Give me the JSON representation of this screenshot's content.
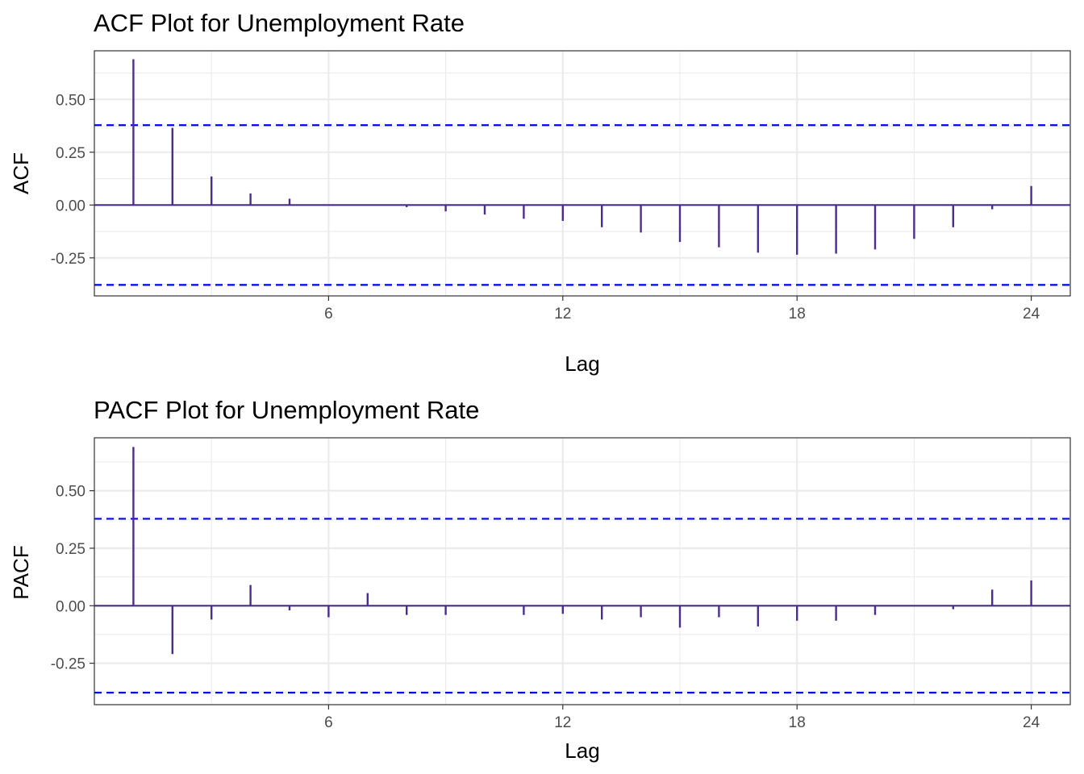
{
  "chart_data": [
    {
      "type": "bar",
      "title": "ACF Plot for Unemployment Rate",
      "xlabel": "Lag",
      "ylabel": "ACF",
      "x_ticks": [
        6,
        12,
        18,
        24
      ],
      "y_ticks": [
        0.5,
        0.25,
        0.0,
        -0.25
      ],
      "y_tick_labels": [
        "0.50",
        "0.25",
        "0.00",
        "-0.25"
      ],
      "xlim": [
        0,
        25
      ],
      "ylim": [
        -0.43,
        0.73
      ],
      "confidence_bounds": [
        0.378,
        -0.378
      ],
      "lags": [
        1,
        2,
        3,
        4,
        5,
        6,
        7,
        8,
        9,
        10,
        11,
        12,
        13,
        14,
        15,
        16,
        17,
        18,
        19,
        20,
        21,
        22,
        23,
        24
      ],
      "values": [
        0.69,
        0.365,
        0.135,
        0.055,
        0.03,
        0.0,
        0.0,
        -0.01,
        -0.03,
        -0.045,
        -0.065,
        -0.075,
        -0.105,
        -0.13,
        -0.175,
        -0.2,
        -0.225,
        -0.235,
        -0.23,
        -0.21,
        -0.16,
        -0.105,
        -0.02,
        0.09
      ],
      "grid": true,
      "colors": {
        "stem": "#4b2c8f",
        "bounds": "#0000ff",
        "grid": "#ebebeb",
        "zero_line": "#4b2c8f"
      }
    },
    {
      "type": "bar",
      "title": "PACF Plot for Unemployment Rate",
      "xlabel": "Lag",
      "ylabel": "PACF",
      "x_ticks": [
        6,
        12,
        18,
        24
      ],
      "y_ticks": [
        0.5,
        0.25,
        0.0,
        -0.25
      ],
      "y_tick_labels": [
        "0.50",
        "0.25",
        "0.00",
        "-0.25"
      ],
      "xlim": [
        0,
        25
      ],
      "ylim": [
        -0.43,
        0.73
      ],
      "confidence_bounds": [
        0.378,
        -0.378
      ],
      "lags": [
        1,
        2,
        3,
        4,
        5,
        6,
        7,
        8,
        9,
        10,
        11,
        12,
        13,
        14,
        15,
        16,
        17,
        18,
        19,
        20,
        21,
        22,
        23,
        24
      ],
      "values": [
        0.69,
        -0.21,
        -0.06,
        0.09,
        -0.02,
        -0.05,
        0.055,
        -0.04,
        -0.04,
        0.0,
        -0.04,
        -0.035,
        -0.06,
        -0.05,
        -0.095,
        -0.05,
        -0.09,
        -0.065,
        -0.065,
        -0.04,
        0.0,
        -0.015,
        0.07,
        0.11
      ],
      "grid": true,
      "colors": {
        "stem": "#4b2c8f",
        "bounds": "#0000ff",
        "grid": "#ebebeb",
        "zero_line": "#4b2c8f"
      }
    }
  ]
}
